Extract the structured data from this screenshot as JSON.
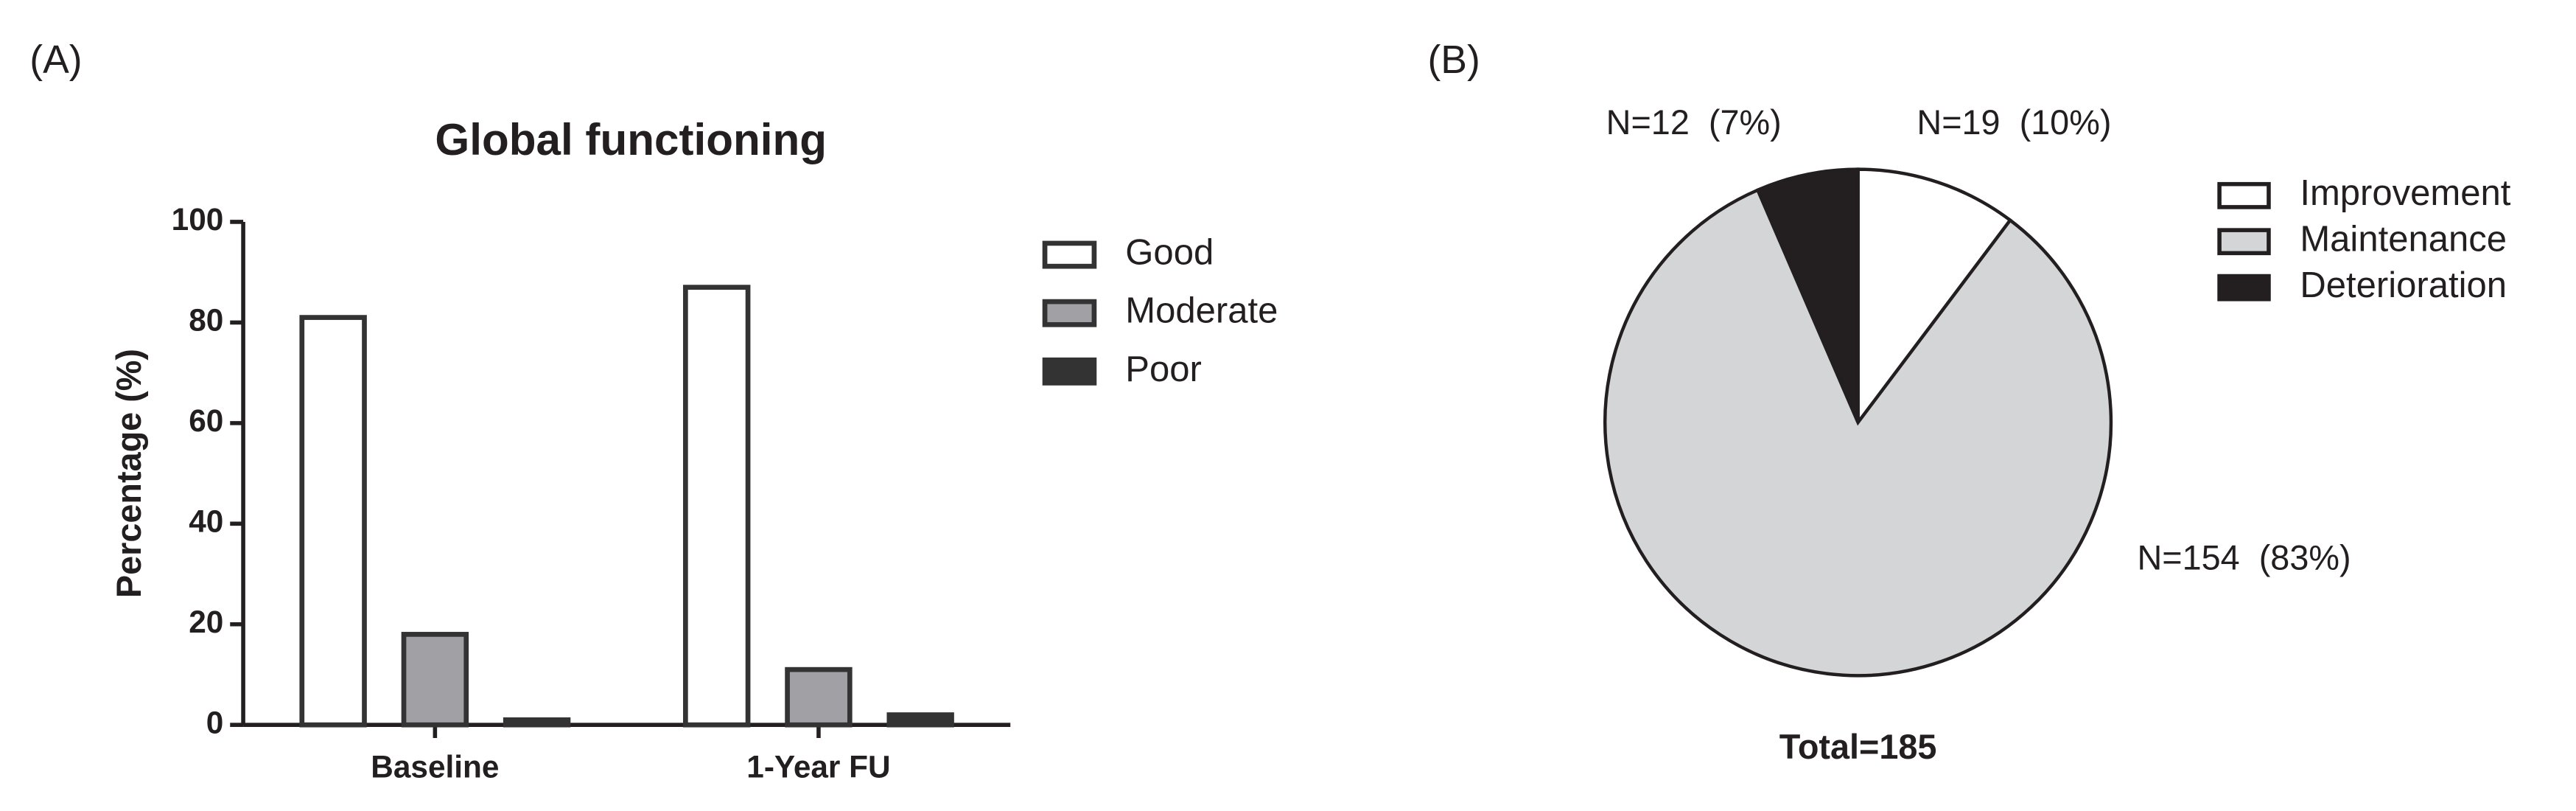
{
  "chart_data": [
    {
      "type": "bar",
      "panel_label": "(A)",
      "title": "Global functioning",
      "ylabel": "Percentage (%)",
      "categories": [
        "Baseline",
        "1-Year FU"
      ],
      "series": [
        {
          "name": "Good",
          "color": "#ffffff",
          "values": [
            81,
            87
          ]
        },
        {
          "name": "Moderate",
          "color": "#a0a0a5",
          "values": [
            18,
            11
          ]
        },
        {
          "name": "Poor",
          "color": "#333333",
          "values": [
            1,
            2
          ]
        }
      ],
      "ylim": [
        0,
        100
      ],
      "yticks": [
        0,
        20,
        40,
        60,
        80,
        100
      ],
      "grid": false,
      "legend": "right"
    },
    {
      "type": "pie",
      "panel_label": "(B)",
      "categories": [
        "Improvement",
        "Maintenance",
        "Deterioration"
      ],
      "values": [
        19,
        154,
        12
      ],
      "value_labels": [
        "N=19  (10%)",
        "N=154  (83%)",
        "N=12  (7%)"
      ],
      "colors": [
        "#ffffff",
        "#d4d5d7",
        "#231f20"
      ],
      "total_label": "Total=185",
      "legend": "right"
    }
  ]
}
